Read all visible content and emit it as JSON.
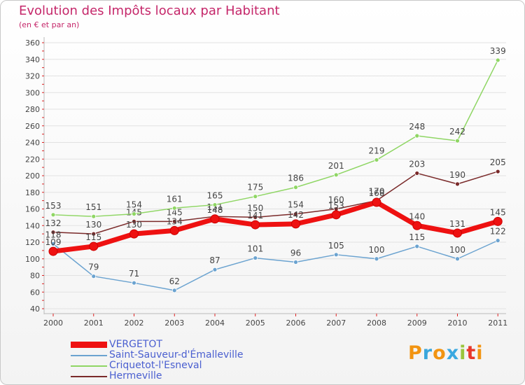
{
  "header": {
    "title": "Evolution des Impôts locaux par Habitant",
    "subtitle": "(en € et par an)"
  },
  "brand": {
    "text": "Proxiti",
    "letters": [
      {
        "ch": "P",
        "color": "#f29411"
      },
      {
        "ch": "r",
        "color": "#39a6dc"
      },
      {
        "ch": "o",
        "color": "#f29411"
      },
      {
        "ch": "x",
        "color": "#3aa8e0"
      },
      {
        "ch": "i",
        "color": "#9ac43c"
      },
      {
        "ch": "t",
        "color": "#e8382c"
      },
      {
        "ch": "i",
        "color": "#f29411"
      }
    ]
  },
  "chart_data": {
    "type": "line",
    "title": "Evolution des Impôts locaux par Habitant",
    "ylabel": "(en € et par an)",
    "xlabel": "",
    "ylim": [
      40,
      360
    ],
    "ytick_step": 20,
    "ytick_labels": [
      "40",
      "60",
      "80",
      "100",
      "120",
      "140",
      "160",
      "180",
      "200",
      "220",
      "240",
      "260",
      "280",
      "300",
      "320",
      "340",
      "360"
    ],
    "grid": "horizontal",
    "categories": [
      "2000",
      "2001",
      "2002",
      "2003",
      "2004",
      "2005",
      "2006",
      "2007",
      "2008",
      "2009",
      "2010",
      "2011"
    ],
    "series": [
      {
        "name": "Hermeville",
        "color": "#7a2a2a",
        "values": [
          132,
          130,
          145,
          145,
          151,
          150,
          154,
          160,
          170,
          203,
          190,
          205
        ],
        "labels": [
          "132",
          "130",
          "145",
          "145",
          "151",
          "150",
          "154",
          "160",
          "170",
          "203",
          "190",
          "205"
        ]
      },
      {
        "name": "Criquetot-l'Esneval",
        "color": "#8fd664",
        "values": [
          153,
          151,
          154,
          161,
          165,
          175,
          186,
          201,
          219,
          248,
          242,
          339
        ],
        "labels": [
          "153",
          "151",
          "154",
          "161",
          "165",
          "175",
          "186",
          "201",
          "219",
          "248",
          "242",
          "339"
        ]
      },
      {
        "name": "Saint-Sauveur-d'Émalleville",
        "color": "#6ba3d0",
        "values": [
          118,
          79,
          71,
          62,
          87,
          101,
          96,
          105,
          100,
          115,
          100,
          122
        ],
        "labels": [
          "118",
          "79",
          "71",
          "62",
          "87",
          "101",
          "96",
          "105",
          "100",
          "115",
          "100",
          "122"
        ]
      },
      {
        "name": "VERGETOT",
        "color": "#ee1111",
        "values": [
          109,
          115,
          130,
          134,
          148,
          141,
          142,
          153,
          168,
          140,
          131,
          145
        ],
        "labels": [
          "109",
          "115",
          "130",
          "134",
          "148",
          "141",
          "142",
          "153",
          "168",
          "140",
          "131",
          "145"
        ]
      }
    ],
    "legend": [
      {
        "name": "VERGETOT",
        "color": "#ee1111",
        "thick": true
      },
      {
        "name": "Saint-Sauveur-d'Émalleville",
        "color": "#6ba3d0",
        "thick": false
      },
      {
        "name": "Criquetot-l'Esneval",
        "color": "#8fd664",
        "thick": false
      },
      {
        "name": "Hermeville",
        "color": "#7a2a2a",
        "thick": false
      }
    ],
    "legend_position": "bottom-left"
  }
}
